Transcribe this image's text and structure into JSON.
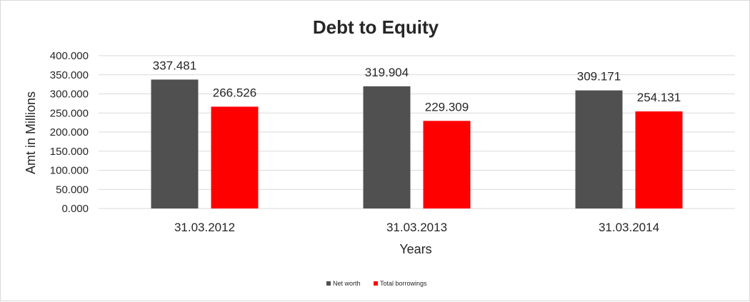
{
  "chart_data": {
    "type": "bar",
    "title": "Debt to Equity",
    "xlabel": "Years",
    "ylabel": "Amt in Millions",
    "categories": [
      "31.03.2012",
      "31.03.2013",
      "31.03.2014"
    ],
    "series": [
      {
        "name": "Net worth",
        "values": [
          337.481,
          319.904,
          309.171
        ],
        "labels": [
          "337.481",
          "319.904",
          "309.171"
        ],
        "color": "#505050"
      },
      {
        "name": "Total borrowings",
        "values": [
          266.526,
          229.309,
          254.131
        ],
        "labels": [
          "266.526",
          "229.309",
          "254.131"
        ],
        "color": "#ff0000"
      }
    ],
    "ylim": [
      0,
      400
    ],
    "yticks": [
      0,
      50,
      100,
      150,
      200,
      250,
      300,
      350,
      400
    ],
    "ytick_labels": [
      "0.000",
      "50.000",
      "100.000",
      "150.000",
      "200.000",
      "250.000",
      "300.000",
      "350.000",
      "400.000"
    ],
    "grid": true,
    "legend_position": "bottom"
  }
}
